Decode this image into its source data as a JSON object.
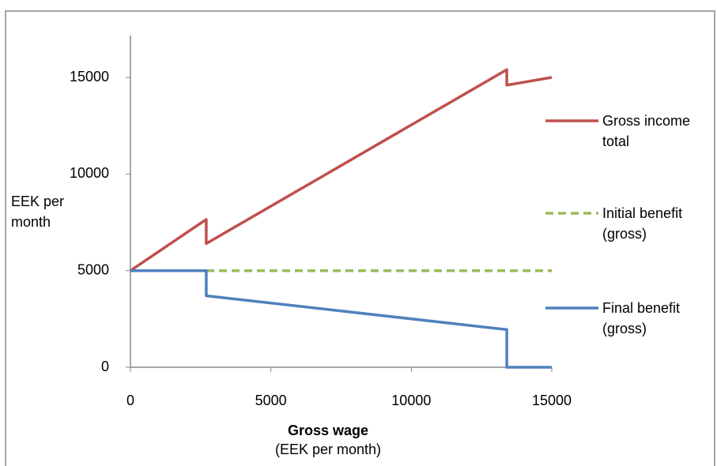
{
  "chart_data": {
    "type": "line",
    "ylabel": "EEK per month",
    "xlabel": "Gross wage",
    "xlabel_units": "(EEK per month)",
    "xlim": [
      0,
      15000
    ],
    "xticks": [
      0,
      5000,
      10000,
      15000
    ],
    "ylim": [
      0,
      15000
    ],
    "yticks": [
      0,
      5000,
      10000,
      15000
    ],
    "grid": false,
    "legend": "right",
    "series": [
      {
        "name": "Gross income total",
        "color": "#c0504d",
        "dash": false,
        "x": [
          0,
          2700,
          2700,
          13400,
          13400,
          15000
        ],
        "values": [
          5000,
          7650,
          6400,
          15400,
          14600,
          15000
        ]
      },
      {
        "name": "Initial benefit (gross)",
        "color": "#9bbb59",
        "dash": true,
        "x": [
          0,
          15000
        ],
        "values": [
          5000,
          5000
        ]
      },
      {
        "name": "Final benefit (gross)",
        "color": "#4f81bd",
        "dash": false,
        "x": [
          0,
          2700,
          2700,
          13400,
          13400,
          15000
        ],
        "values": [
          5000,
          5000,
          3700,
          1950,
          0,
          0
        ]
      }
    ]
  }
}
